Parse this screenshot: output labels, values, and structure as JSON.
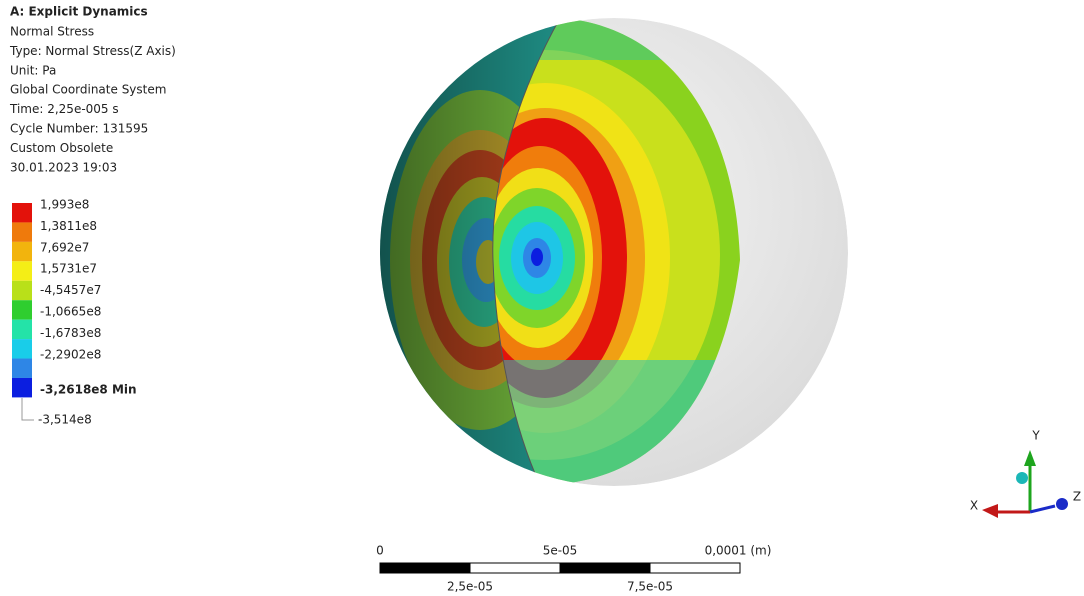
{
  "header": {
    "title": "A: Explicit Dynamics",
    "lines": [
      "Normal Stress",
      "Type: Normal Stress(Z Axis)",
      "Unit: Pa",
      "Global Coordinate System",
      "Time: 2,25e-005 s",
      "Cycle Number: 131595",
      "Custom Obsolete",
      "30.01.2023 19:03"
    ]
  },
  "legend": {
    "colors": [
      "#e3120b",
      "#ef7a0c",
      "#f2b40d",
      "#f4ee16",
      "#b9e019",
      "#2fce2f",
      "#24e3a8",
      "#19cde9",
      "#2e86e6",
      "#0b1ee0"
    ],
    "labels": [
      "1,993e8",
      "1,3811e8",
      "7,692e7",
      "1,5731e7",
      "-4,5457e7",
      "-1,0665e8",
      "-1,6783e8",
      "-2,2902e8"
    ],
    "min_label": "-3,2618e8 Min",
    "floor_label": "-3,514e8"
  },
  "scale_bar": {
    "top_labels": [
      "0",
      "5e-05",
      "0,0001 (m)"
    ],
    "bottom_labels": [
      "2,5e-05",
      "7,5e-05"
    ]
  },
  "triad": {
    "x": "X",
    "y": "Y",
    "z": "Z"
  }
}
